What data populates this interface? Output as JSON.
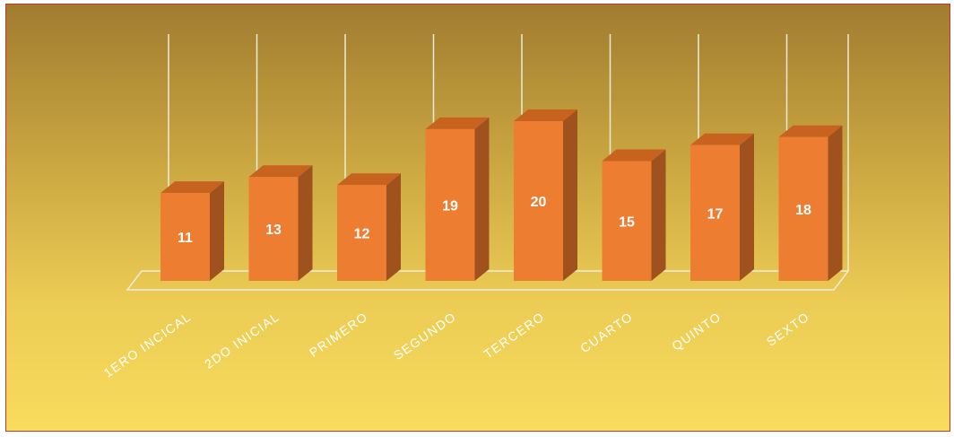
{
  "chart_data": {
    "type": "bar",
    "title": "",
    "xlabel": "",
    "ylabel": "",
    "categories": [
      "1ERO INCICAL",
      "2DO INICIAL",
      "PRIMERO",
      "SEGUNDO",
      "TERCERO",
      "CUARTO",
      "QUINTO",
      "SEXTO"
    ],
    "values": [
      11,
      13,
      12,
      19,
      20,
      15,
      17,
      18
    ],
    "ylim": [
      0,
      22
    ],
    "grid": true,
    "legend": "none",
    "colors": {
      "bar_front": "#ed7d31",
      "bar_side": "#a0521e",
      "bar_top": "#c8621f",
      "gridline": "#ececdc",
      "label": "#ffffff"
    }
  }
}
